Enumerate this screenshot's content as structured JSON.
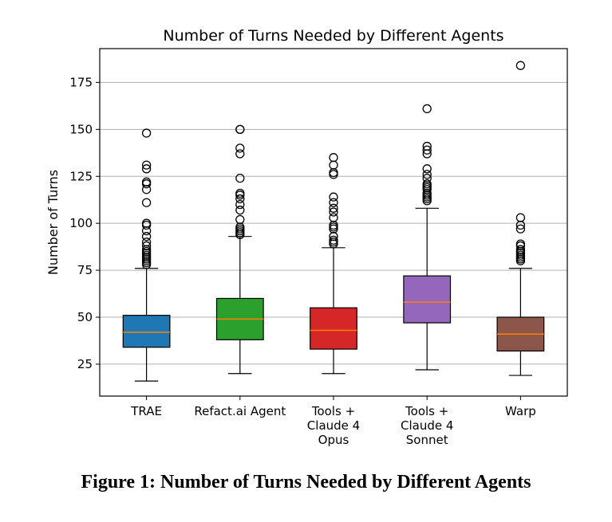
{
  "caption": "Figure 1: Number of Turns Needed by Different Agents",
  "chart_data": {
    "type": "box",
    "title": "Number of Turns Needed by Different Agents",
    "xlabel": "",
    "ylabel": "Number of Turns",
    "ylim": [
      8,
      193
    ],
    "yticks": [
      25,
      50,
      75,
      100,
      125,
      150,
      175
    ],
    "grid": "horizontal",
    "categories": [
      [
        "TRAE"
      ],
      [
        "Refact.ai Agent"
      ],
      [
        "Tools +",
        "Claude 4",
        "Opus"
      ],
      [
        "Tools +",
        "Claude 4",
        "Sonnet"
      ],
      [
        "Warp"
      ]
    ],
    "boxes": [
      {
        "whisker_low": 16,
        "q1": 34,
        "median": 42,
        "q3": 51,
        "whisker_high": 76,
        "color": "#1f77b4",
        "outliers": [
          78,
          79,
          80,
          81,
          82,
          83,
          84,
          85,
          86,
          88,
          90,
          93,
          96,
          99,
          100,
          111,
          118,
          121,
          122,
          129,
          131,
          148
        ]
      },
      {
        "whisker_low": 20,
        "q1": 38,
        "median": 49,
        "q3": 60,
        "whisker_high": 93,
        "color": "#2ca02c",
        "outliers": [
          94,
          95,
          96,
          97,
          98,
          102,
          107,
          110,
          113,
          115,
          116,
          124,
          137,
          140,
          150,
          150
        ]
      },
      {
        "whisker_low": 20,
        "q1": 33,
        "median": 43,
        "q3": 55,
        "whisker_high": 87,
        "color": "#d62728",
        "outliers": [
          89,
          90,
          91,
          93,
          97,
          98,
          99,
          103,
          106,
          108,
          111,
          114,
          126,
          127,
          131,
          135
        ]
      },
      {
        "whisker_low": 22,
        "q1": 47,
        "median": 58,
        "q3": 72,
        "whisker_high": 108,
        "color": "#9467bd",
        "outliers": [
          112,
          113,
          114,
          115,
          116,
          118,
          119,
          120,
          121,
          124,
          126,
          129,
          137,
          139,
          141,
          161
        ]
      },
      {
        "whisker_low": 19,
        "q1": 32,
        "median": 41,
        "q3": 50,
        "whisker_high": 76,
        "color": "#8c564b",
        "outliers": [
          80,
          81,
          82,
          83,
          84,
          85,
          86,
          88,
          89,
          97,
          99,
          103,
          184
        ]
      }
    ],
    "median_color": "#ff7f0e"
  }
}
